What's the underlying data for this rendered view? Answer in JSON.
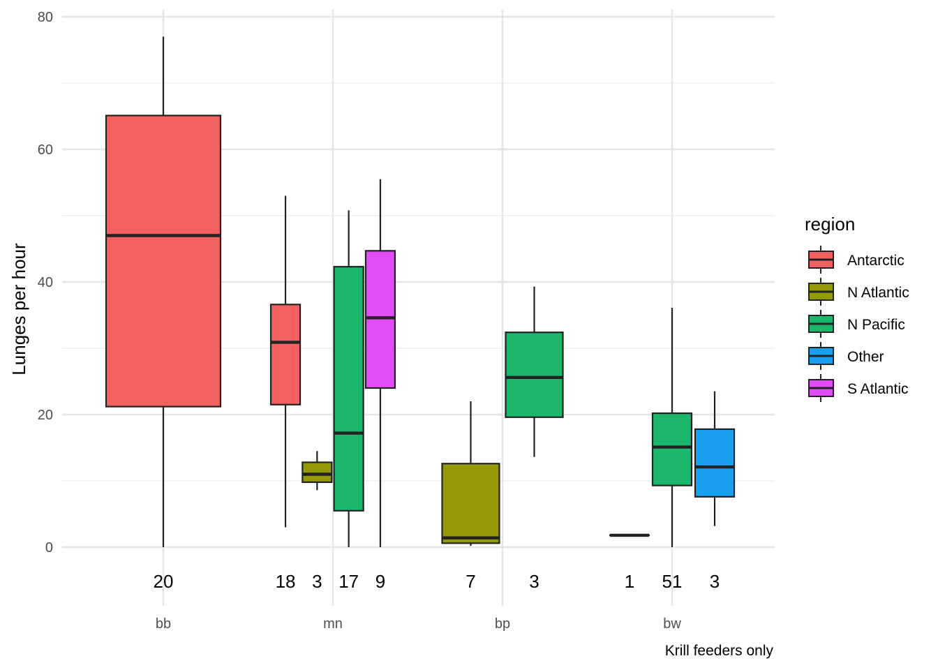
{
  "chart_data": {
    "type": "boxplot",
    "ylabel": "Lunges per hour",
    "caption": "Krill feeders only",
    "ylim": [
      -8,
      80
    ],
    "yticks": [
      0,
      20,
      40,
      60,
      80
    ],
    "grid": true,
    "legend": {
      "title": "region",
      "placement": "right",
      "items": [
        {
          "label": "Antarctic",
          "color": "#F2615F"
        },
        {
          "label": "N Atlantic",
          "color": "#949904"
        },
        {
          "label": "N Pacific",
          "color": "#1AB76C"
        },
        {
          "label": "Other",
          "color": "#19A1F0"
        },
        {
          "label": "S Atlantic",
          "color": "#E04CF5"
        }
      ]
    },
    "categories": [
      "bb",
      "mn",
      "bp",
      "bw"
    ],
    "boxes": [
      {
        "category": "bb",
        "region": "Antarctic",
        "n": "20",
        "whisker_low": 0,
        "q1": 21.2,
        "median": 47.0,
        "q3": 65.1,
        "whisker_high": 77.0
      },
      {
        "category": "mn",
        "region": "Antarctic",
        "n": "18",
        "whisker_low": 3.0,
        "q1": 21.5,
        "median": 30.9,
        "q3": 36.6,
        "whisker_high": 53.0
      },
      {
        "category": "mn",
        "region": "N Atlantic",
        "n": "3",
        "whisker_low": 8.6,
        "q1": 9.8,
        "median": 11.0,
        "q3": 12.8,
        "whisker_high": 14.5
      },
      {
        "category": "mn",
        "region": "N Pacific",
        "n": "17",
        "whisker_low": 0,
        "q1": 5.5,
        "median": 17.2,
        "q3": 42.3,
        "whisker_high": 50.8
      },
      {
        "category": "mn",
        "region": "S Atlantic",
        "n": "9",
        "whisker_low": 0,
        "q1": 24.0,
        "median": 34.6,
        "q3": 44.7,
        "whisker_high": 55.5
      },
      {
        "category": "bp",
        "region": "N Atlantic",
        "n": "7",
        "whisker_low": 0.2,
        "q1": 0.6,
        "median": 1.4,
        "q3": 12.6,
        "whisker_high": 22.0
      },
      {
        "category": "bp",
        "region": "N Pacific",
        "n": "3",
        "whisker_low": 13.6,
        "q1": 19.6,
        "median": 25.6,
        "q3": 32.4,
        "whisker_high": 39.3
      },
      {
        "category": "bw",
        "region": "Antarctic",
        "n": "1",
        "whisker_low": 1.8,
        "q1": 1.8,
        "median": 1.8,
        "q3": 1.8,
        "whisker_high": 1.8
      },
      {
        "category": "bw",
        "region": "N Pacific",
        "n": "51",
        "whisker_low": 0,
        "q1": 9.3,
        "median": 15.1,
        "q3": 20.2,
        "whisker_high": 36.1
      },
      {
        "category": "bw",
        "region": "Other",
        "n": "3",
        "whisker_low": 3.2,
        "q1": 7.6,
        "median": 12.1,
        "q3": 17.8,
        "whisker_high": 23.5
      }
    ]
  }
}
